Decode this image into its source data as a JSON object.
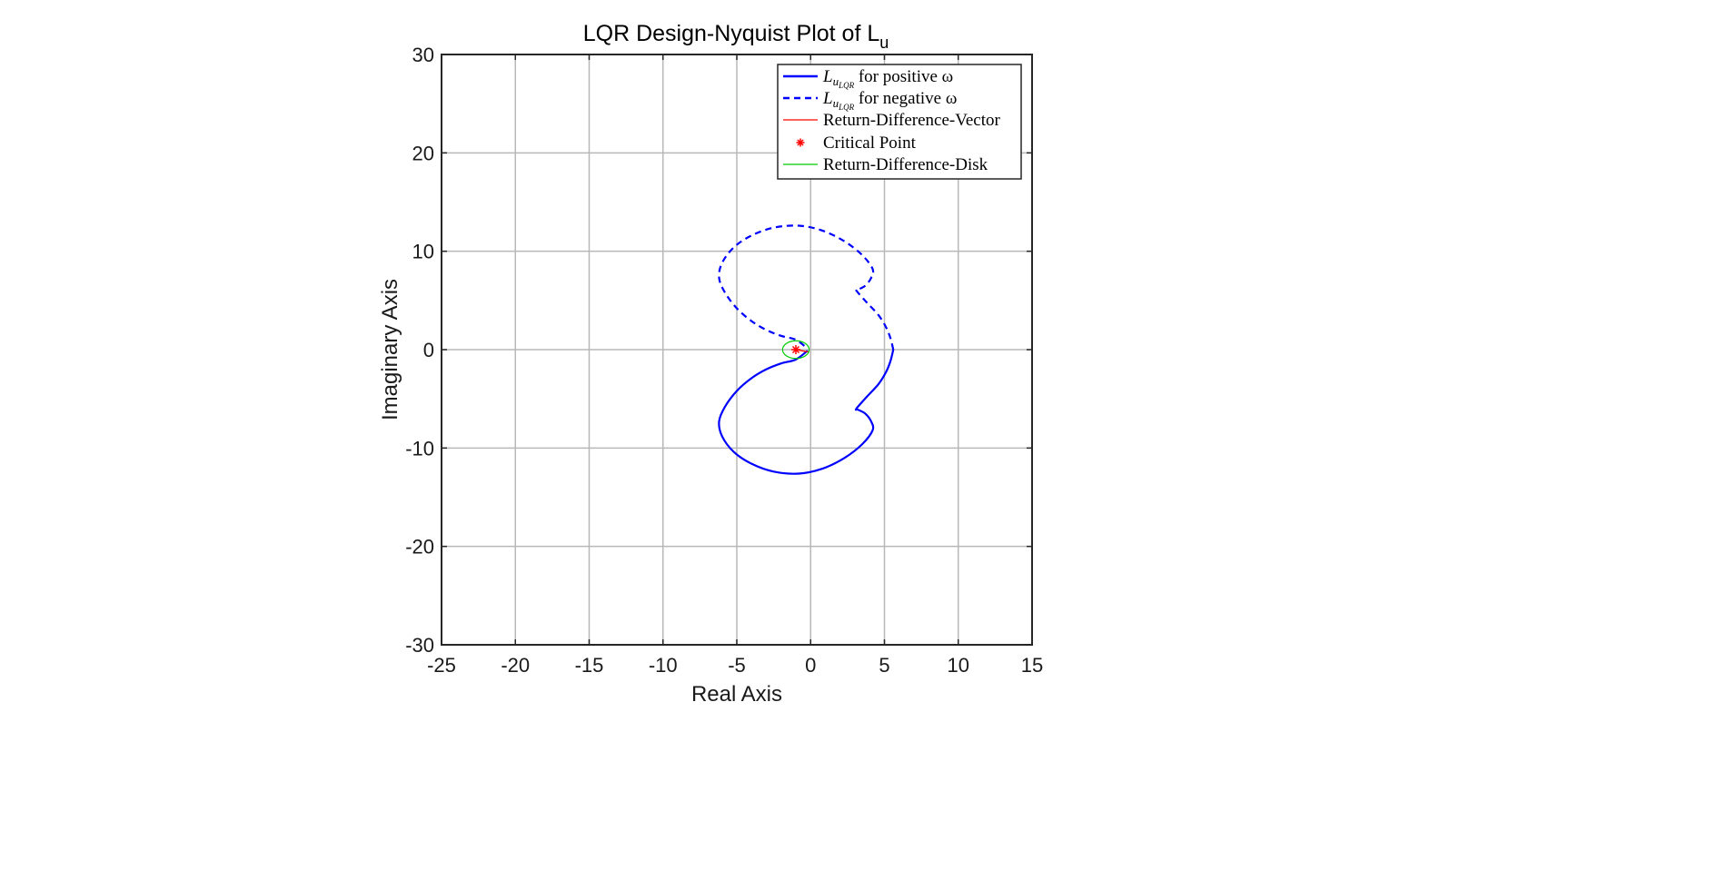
{
  "chart_data": {
    "type": "line",
    "title": "LQR Design-Nyquist Plot of ",
    "title_subscript": "u",
    "title_main": "L",
    "xlabel": "Real Axis",
    "ylabel": "Imaginary Axis",
    "xlim": [
      -25,
      15
    ],
    "ylim": [
      -30,
      30
    ],
    "xticks": [
      -25,
      -20,
      -15,
      -10,
      -5,
      0,
      5,
      10,
      15
    ],
    "yticks": [
      -30,
      -20,
      -10,
      0,
      10,
      20,
      30
    ],
    "xtick_labels": [
      "-25",
      "-20",
      "-15",
      "-10",
      "-5",
      "0",
      "5",
      "10",
      "15"
    ],
    "ytick_labels": [
      "-30",
      "-20",
      "-10",
      "0",
      "10",
      "20",
      "30"
    ],
    "grid": true,
    "legend_position": "top-right",
    "series": [
      {
        "name": "L_{u_{LQR}} for positive ω",
        "legend_parts": {
          "main": "L",
          "sub": "u",
          "subsub": "LQR",
          "rest": " for positive ω"
        },
        "style": "solid",
        "color": "#0000ff",
        "x": [
          -0.2,
          -1.0,
          -2.0,
          -3.0,
          -4.0,
          -5.0,
          -5.8,
          -6.2,
          -6.0,
          -5.2,
          -4.0,
          -2.5,
          -0.8,
          0.8,
          2.3,
          3.5,
          4.2,
          4.1,
          3.7,
          3.2,
          3.1,
          3.8,
          4.6,
          5.1,
          5.4,
          5.6
        ],
        "y": [
          -0.1,
          -1.0,
          -1.4,
          -2.0,
          -2.9,
          -4.2,
          -5.8,
          -7.3,
          -8.8,
          -10.4,
          -11.6,
          -12.4,
          -12.6,
          -12.1,
          -11.0,
          -9.6,
          -8.2,
          -7.3,
          -6.5,
          -6.1,
          -6.0,
          -4.8,
          -3.5,
          -2.3,
          -1.2,
          0.0
        ]
      },
      {
        "name": "L_{u_{LQR}} for negative ω",
        "legend_parts": {
          "main": "L",
          "sub": "u",
          "subsub": "LQR",
          "rest": " for negative ω"
        },
        "style": "dashed",
        "color": "#0000ff",
        "x": [
          5.6,
          5.4,
          5.1,
          4.6,
          3.8,
          3.1,
          3.2,
          3.7,
          4.1,
          4.2,
          3.5,
          2.3,
          0.8,
          -0.8,
          -2.5,
          -4.0,
          -5.2,
          -6.0,
          -6.2,
          -5.8,
          -5.0,
          -4.0,
          -3.0,
          -2.0,
          -1.0,
          -0.2
        ],
        "y": [
          0.0,
          1.2,
          2.3,
          3.5,
          4.8,
          6.0,
          6.1,
          6.5,
          7.3,
          8.2,
          9.6,
          11.0,
          12.1,
          12.6,
          12.4,
          11.6,
          10.4,
          8.8,
          7.3,
          5.8,
          4.2,
          2.9,
          2.0,
          1.4,
          1.0,
          0.1
        ]
      },
      {
        "name": "Return-Difference-Vector",
        "style": "solid-thin",
        "color": "#ff0000",
        "x": [
          -1,
          -0.1
        ],
        "y": [
          0,
          -0.25
        ]
      },
      {
        "name": "Critical Point",
        "style": "marker-asterisk",
        "color": "#ff0000",
        "x": [
          -1
        ],
        "y": [
          0
        ]
      },
      {
        "name": "Return-Difference-Disk",
        "style": "circle",
        "color": "#00cc00",
        "center": [
          -1,
          0
        ],
        "radius": 0.9
      }
    ]
  }
}
